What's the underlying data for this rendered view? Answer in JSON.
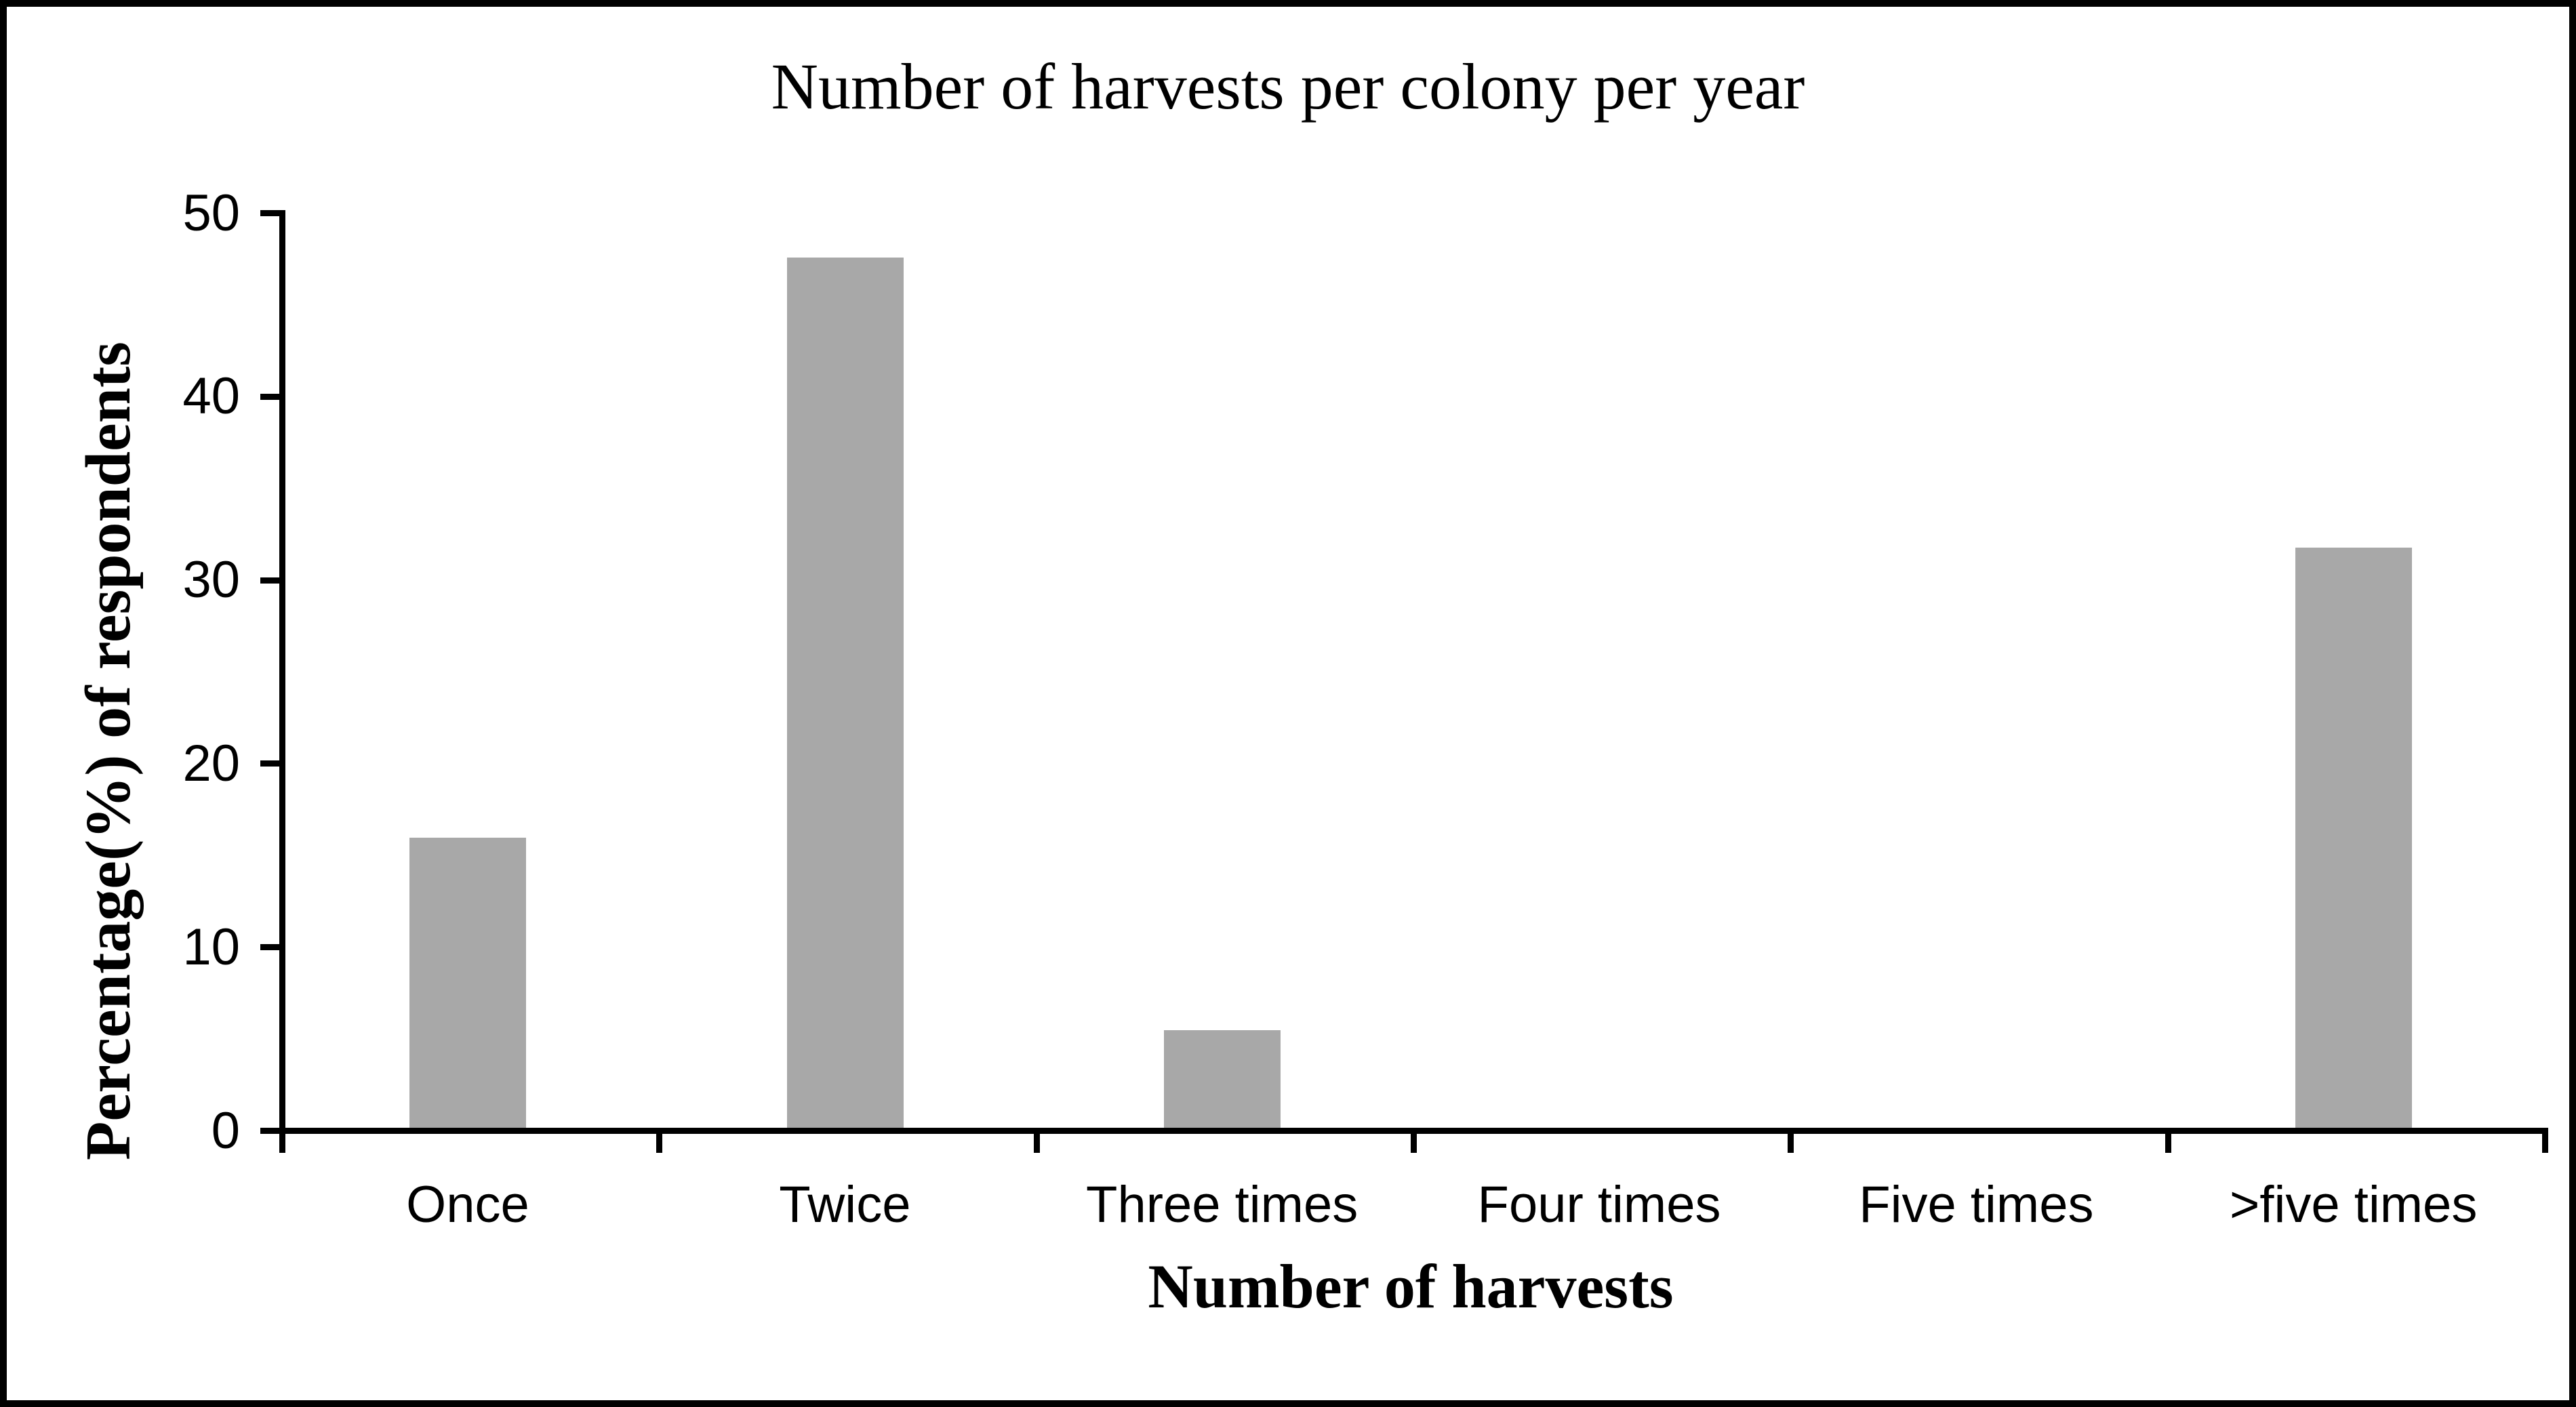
{
  "figure": {
    "title": "Number of harvests per colony per year",
    "x_axis_title": "Number of harvests",
    "y_axis_title": "Percentage(%) of respondents"
  },
  "chart_data": {
    "type": "bar",
    "title": "Number of harvests per colony per year",
    "xlabel": "Number of harvests",
    "ylabel": "Percentage(%) of respondents",
    "categories": [
      "Once",
      "Twice",
      "Three times",
      "Four times",
      "Five times",
      ">five times"
    ],
    "values": [
      15.8,
      47.4,
      5.3,
      0,
      0,
      31.6
    ],
    "ylim": [
      0,
      50
    ],
    "yticks": [
      0,
      10,
      20,
      30,
      40,
      50
    ],
    "grid": false,
    "legend": false,
    "bar_color": "#a8a8a8",
    "axis_color": "#000000",
    "background_color": "#ffffff",
    "frame_color": "#000000"
  }
}
